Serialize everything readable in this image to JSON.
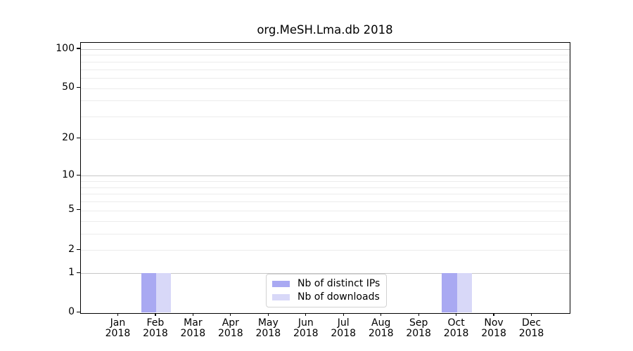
{
  "chart_data": {
    "type": "bar",
    "title": "org.MeSH.Lma.db 2018",
    "x_axis": {
      "categories": [
        "Jan",
        "Feb",
        "Mar",
        "Apr",
        "May",
        "Jun",
        "Jul",
        "Aug",
        "Sep",
        "Oct",
        "Nov",
        "Dec"
      ],
      "year_label": "2018"
    },
    "y_axis": {
      "scale": "log1p",
      "tick_values": [
        0,
        1,
        2,
        5,
        10,
        20,
        50,
        100
      ],
      "major_gridlines": [
        1,
        10,
        100
      ],
      "minor_gridlines": [
        2,
        3,
        4,
        5,
        6,
        7,
        8,
        9,
        20,
        30,
        40,
        50,
        60,
        70,
        80,
        90
      ],
      "ylim": [
        0,
        113
      ]
    },
    "series": [
      {
        "name": "Nb of distinct IPs",
        "color": "#a9a9f2",
        "values": [
          0,
          1,
          0,
          0,
          0,
          0,
          0,
          0,
          0,
          1,
          0,
          0
        ]
      },
      {
        "name": "Nb of downloads",
        "color": "#d8d8f8",
        "values": [
          0,
          1,
          0,
          0,
          0,
          0,
          0,
          0,
          0,
          1,
          0,
          0
        ]
      }
    ],
    "legend": {
      "position": "lower center",
      "entries": [
        "Nb of distinct IPs",
        "Nb of downloads"
      ]
    },
    "grid": true
  },
  "colors": {
    "background": "#ffffff",
    "axis": "#000000",
    "major_grid": "#c6c6c6",
    "minor_grid": "#ececec",
    "tick_label": "#000000",
    "legend_border": "#d2d2d2"
  }
}
